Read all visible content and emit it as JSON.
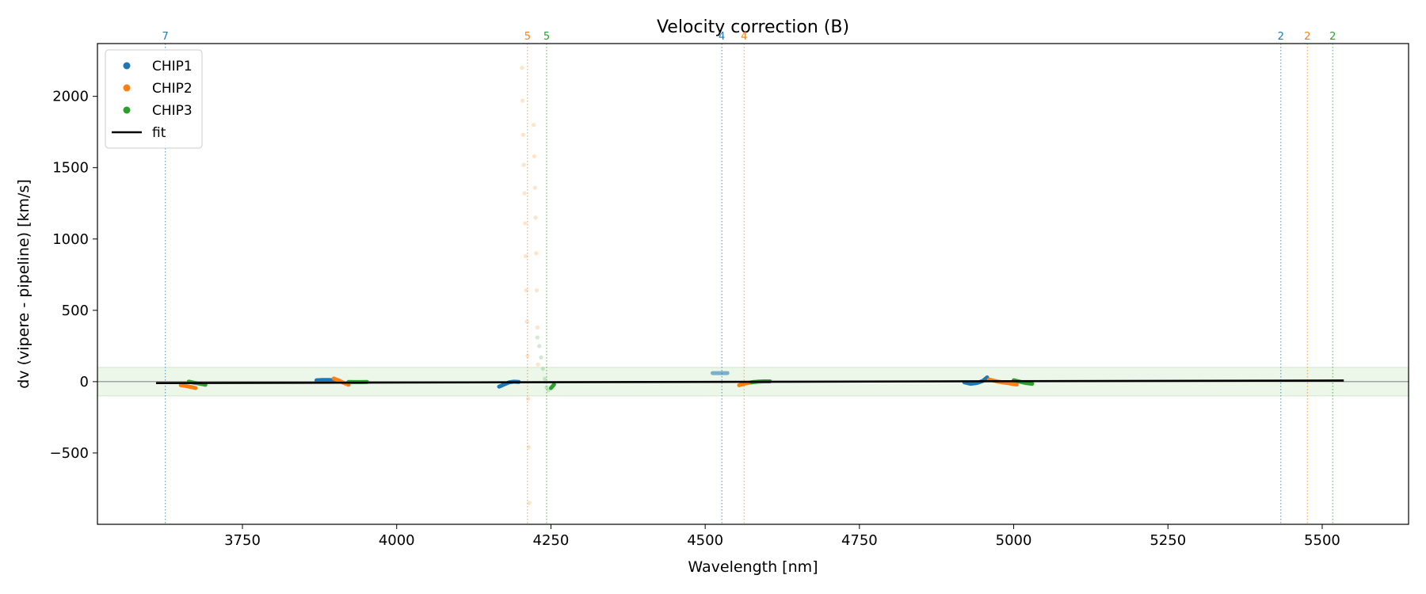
{
  "chart_data": {
    "type": "scatter",
    "title": "Velocity correction (B)",
    "xlabel": "Wavelength [nm]",
    "ylabel": "dv (vipere - pipeline) [km/s]",
    "xlim": [
      3515,
      5640
    ],
    "ylim": [
      -1000,
      2370
    ],
    "xticks": [
      3750,
      4000,
      4250,
      4500,
      4750,
      5000,
      5250,
      5500
    ],
    "yticks": [
      -500,
      0,
      500,
      1000,
      1500,
      2000
    ],
    "tolerance_band": [
      -100,
      100
    ],
    "grid": false,
    "legend": {
      "placement": "top-left",
      "entries": [
        {
          "label": "CHIP1",
          "kind": "marker",
          "color": "#1f77b4"
        },
        {
          "label": "CHIP2",
          "kind": "marker",
          "color": "#ff7f0e"
        },
        {
          "label": "CHIP3",
          "kind": "marker",
          "color": "#2ca02c"
        },
        {
          "label": "fit",
          "kind": "line",
          "color": "#000000"
        }
      ]
    },
    "colors": {
      "CHIP1": "#1f77b4",
      "CHIP2": "#ff7f0e",
      "CHIP3": "#2ca02c",
      "fit": "#000000",
      "band": "#d9f0d3"
    },
    "order_markers": [
      {
        "x": 3625,
        "label": "7",
        "chip": "CHIP1"
      },
      {
        "x": 4212,
        "label": "5",
        "chip": "CHIP2"
      },
      {
        "x": 4243,
        "label": "5",
        "chip": "CHIP3"
      },
      {
        "x": 4527,
        "label": "4",
        "chip": "CHIP1"
      },
      {
        "x": 4563,
        "label": "4",
        "chip": "CHIP2"
      },
      {
        "x": 5433,
        "label": "2",
        "chip": "CHIP1"
      },
      {
        "x": 5476,
        "label": "2",
        "chip": "CHIP2"
      },
      {
        "x": 5517,
        "label": "2",
        "chip": "CHIP3"
      }
    ],
    "fit": {
      "x": [
        3610,
        5535
      ],
      "y": [
        -10,
        8
      ]
    },
    "segments": [
      {
        "chip": "CHIP2",
        "x": [
          3650,
          3658,
          3666,
          3674
        ],
        "y": [
          -25,
          -30,
          -37,
          -45
        ]
      },
      {
        "chip": "CHIP3",
        "x": [
          3663,
          3672,
          3681,
          3690
        ],
        "y": [
          0,
          -8,
          -14,
          -22
        ]
      },
      {
        "chip": "CHIP1",
        "x": [
          3870,
          3880,
          3890,
          3900
        ],
        "y": [
          10,
          12,
          12,
          10
        ]
      },
      {
        "chip": "CHIP2",
        "x": [
          3898,
          3906,
          3914,
          3922
        ],
        "y": [
          22,
          8,
          -8,
          -22
        ]
      },
      {
        "chip": "CHIP3",
        "x": [
          3922,
          3932,
          3942,
          3952
        ],
        "y": [
          -2,
          -3,
          -3,
          -2
        ]
      },
      {
        "chip": "CHIP1",
        "x": [
          4166,
          4174,
          4182,
          4190,
          4198
        ],
        "y": [
          -35,
          -20,
          -5,
          0,
          -2
        ]
      },
      {
        "chip": "CHIP3",
        "x": [
          4250,
          4255
        ],
        "y": [
          -45,
          -20
        ]
      },
      {
        "chip": "CHIP1",
        "x": [
          4512,
          4520,
          4528,
          4536
        ],
        "y": [
          60,
          60,
          60,
          60
        ],
        "faded": true
      },
      {
        "chip": "CHIP2",
        "x": [
          4555,
          4563,
          4571,
          4579
        ],
        "y": [
          -25,
          -15,
          -8,
          -2
        ]
      },
      {
        "chip": "CHIP3",
        "x": [
          4575,
          4585,
          4595,
          4605
        ],
        "y": [
          -5,
          0,
          2,
          2
        ]
      },
      {
        "chip": "CHIP1",
        "x": [
          4920,
          4930,
          4940,
          4950,
          4957
        ],
        "y": [
          -5,
          -15,
          -10,
          5,
          30
        ]
      },
      {
        "chip": "CHIP2",
        "x": [
          4960,
          4975,
          4990,
          5005
        ],
        "y": [
          15,
          0,
          -10,
          -20
        ]
      },
      {
        "chip": "CHIP3",
        "x": [
          5000,
          5010,
          5020,
          5030
        ],
        "y": [
          10,
          0,
          -10,
          -15
        ]
      }
    ],
    "outliers": [
      {
        "chip": "CHIP2",
        "x": [
          4203,
          4204,
          4205,
          4206,
          4207,
          4208,
          4209,
          4210,
          4211,
          4212,
          4213,
          4214,
          4215
        ],
        "y": [
          2200,
          1970,
          1730,
          1520,
          1320,
          1110,
          880,
          640,
          420,
          180,
          -120,
          -460,
          -850
        ]
      },
      {
        "chip": "CHIP2",
        "x": [
          4222,
          4223,
          4224,
          4225,
          4226,
          4227,
          4228,
          4229
        ],
        "y": [
          1800,
          1580,
          1360,
          1150,
          900,
          640,
          380,
          120
        ]
      },
      {
        "chip": "CHIP3",
        "x": [
          4228,
          4231,
          4234,
          4237,
          4240,
          4243,
          4246
        ],
        "y": [
          310,
          250,
          170,
          90,
          20,
          -40,
          -60
        ]
      }
    ]
  }
}
